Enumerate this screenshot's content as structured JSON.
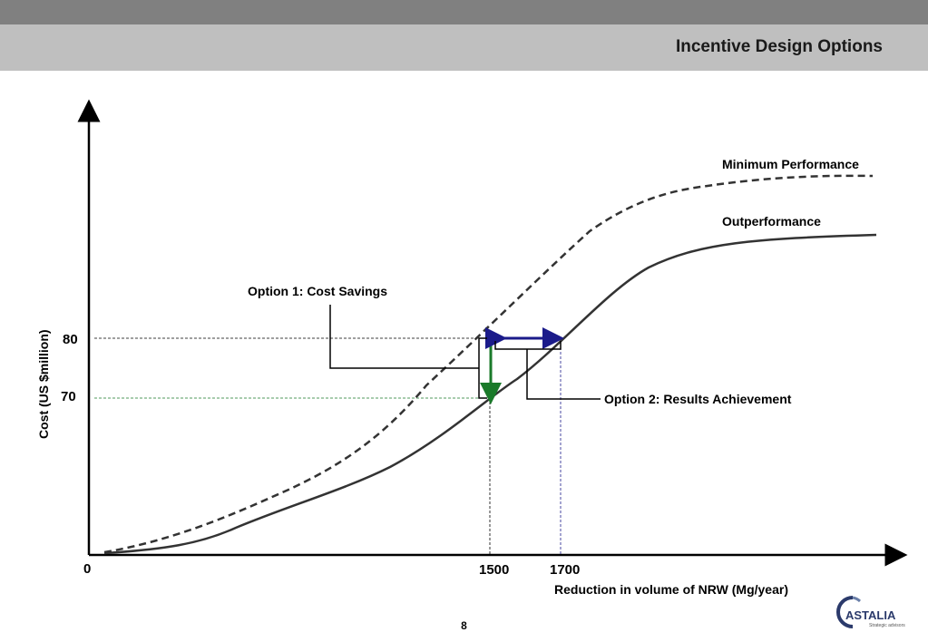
{
  "header": {
    "title": "Incentive Design Options"
  },
  "diagram": {
    "y_axis_label": "Cost (US $million)",
    "x_axis_label": "Reduction in volume of NRW (Mg/year)",
    "origin_label": "0",
    "y_ticks": [
      "80",
      "70"
    ],
    "x_ticks": [
      "1500",
      "1700"
    ],
    "curves": {
      "minimum_performance": "Minimum Performance",
      "outperformance": "Outperformance"
    },
    "callouts": {
      "option1": "Option 1: Cost Savings",
      "option2": "Option 2: Results Achievement"
    },
    "colors": {
      "green_arrow": "#1a7a2a",
      "blue_arrow": "#1b1b8a",
      "green_guide": "#1a7a2a",
      "blue_guide": "#1b1b8a"
    }
  },
  "footer": {
    "page_number": "8"
  },
  "logo": {
    "name": "CASTALIA",
    "tagline": "Strategic advisors"
  }
}
